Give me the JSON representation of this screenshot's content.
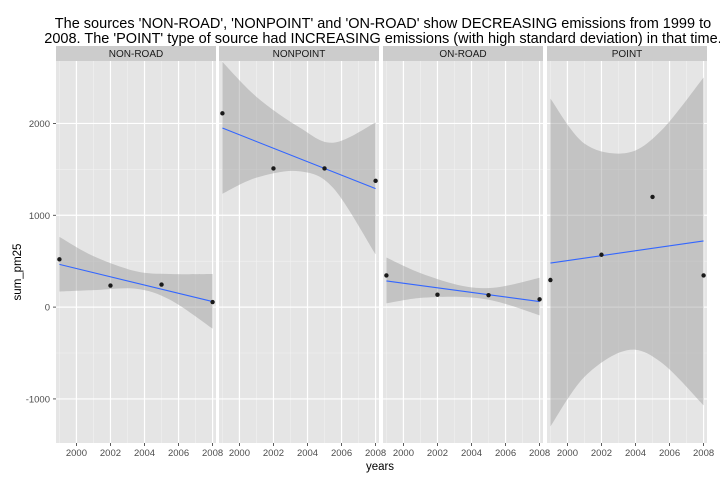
{
  "chart_data": {
    "type": "scatter",
    "title": "The sources 'NON-ROAD', 'NONPOINT' and 'ON-ROAD' show DECREASING emissions from 1999 to 2008. The 'POINT' type of source had INCREASING emissions (with high standard deviation) in that time.",
    "title_lines": [
      "The sources 'NON-ROAD', 'NONPOINT' and 'ON-ROAD' show DECREASING emissions from 1999 to",
      "2008. The 'POINT' type of source had INCREASING emissions (with high standard deviation) in that time."
    ],
    "xlabel": "years",
    "ylabel": "sum_pm25",
    "xlim": [
      1998.8,
      2008.2
    ],
    "ylim": [
      -1480,
      2680
    ],
    "xticks": [
      2000,
      2002,
      2004,
      2006,
      2008
    ],
    "yticks": [
      -1000,
      0,
      1000,
      2000
    ],
    "grid": true,
    "legend": "none",
    "facets": [
      {
        "label": "NON-ROAD",
        "x": [
          1999,
          2002,
          2005,
          2008
        ],
        "y": [
          520,
          235,
          245,
          55
        ],
        "fit": {
          "start": 465,
          "end": 60
        },
        "band": [
          {
            "x": 1999,
            "lo": 170,
            "hi": 765
          },
          {
            "x": 2001,
            "lo": 185,
            "hi": 555
          },
          {
            "x": 2003.5,
            "lo": 200,
            "hi": 390
          },
          {
            "x": 2005.5,
            "lo": 80,
            "hi": 360
          },
          {
            "x": 2008,
            "lo": -235,
            "hi": 360
          }
        ]
      },
      {
        "label": "NONPOINT",
        "x": [
          1999,
          2002,
          2005,
          2008
        ],
        "y": [
          2110,
          1510,
          1510,
          1375
        ],
        "fit": {
          "start": 1950,
          "end": 1290
        },
        "band": [
          {
            "x": 1999,
            "lo": 1235,
            "hi": 2670
          },
          {
            "x": 2001,
            "lo": 1410,
            "hi": 2290
          },
          {
            "x": 2003.5,
            "lo": 1480,
            "hi": 1960
          },
          {
            "x": 2005.5,
            "lo": 1300,
            "hi": 1790
          },
          {
            "x": 2008,
            "lo": 575,
            "hi": 2010
          }
        ]
      },
      {
        "label": "ON-ROAD",
        "x": [
          1999,
          2002,
          2005,
          2008
        ],
        "y": [
          345,
          135,
          130,
          85
        ],
        "fit": {
          "start": 285,
          "end": 60
        },
        "band": [
          {
            "x": 1999,
            "lo": 40,
            "hi": 540
          },
          {
            "x": 2001,
            "lo": 100,
            "hi": 370
          },
          {
            "x": 2003.5,
            "lo": 110,
            "hi": 230
          },
          {
            "x": 2005.5,
            "lo": 60,
            "hi": 215
          },
          {
            "x": 2008,
            "lo": -90,
            "hi": 320
          }
        ]
      },
      {
        "label": "POINT",
        "x": [
          1999,
          2002,
          2005,
          2008
        ],
        "y": [
          295,
          570,
          1200,
          345
        ],
        "fit": {
          "start": 480,
          "end": 720
        },
        "band": [
          {
            "x": 1999,
            "lo": -1300,
            "hi": 2270
          },
          {
            "x": 2001,
            "lo": -760,
            "hi": 1780
          },
          {
            "x": 2003.5,
            "lo": -470,
            "hi": 1680
          },
          {
            "x": 2005.5,
            "lo": -600,
            "hi": 1920
          },
          {
            "x": 2008,
            "lo": -1070,
            "hi": 2500
          }
        ]
      }
    ],
    "colors": {
      "panel_bg": "#e5e5e5",
      "grid_major": "#ffffff",
      "grid_minor": "#f2f2f2",
      "strip_bg": "#cccccc",
      "fit_line": "#3366ff",
      "band": "#999999",
      "point": "#1a1a1a"
    }
  }
}
